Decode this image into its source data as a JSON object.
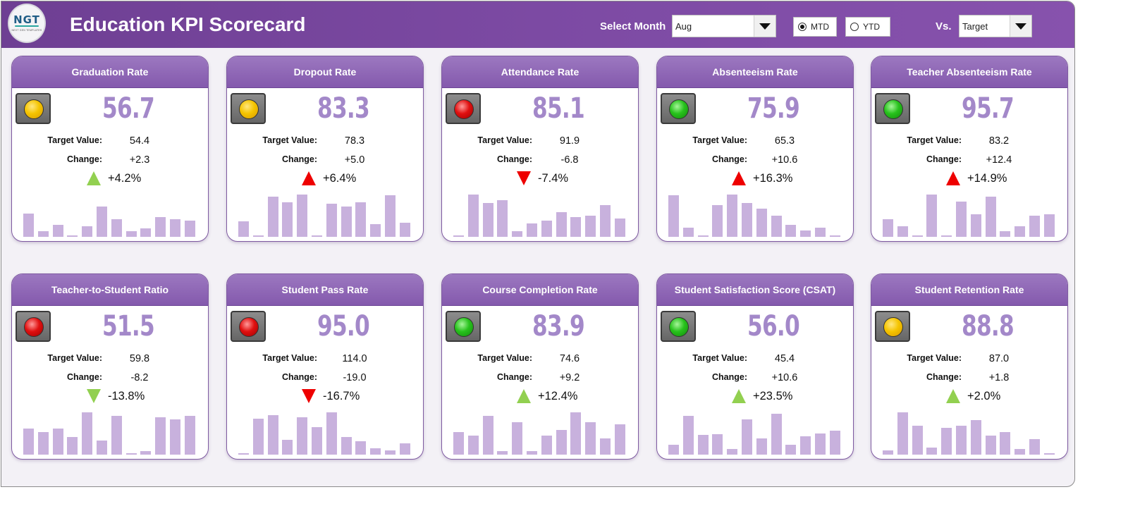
{
  "header": {
    "logo_text": "NGT",
    "logo_subtext": "NEXT GEN TEMPLATES",
    "title": "Education KPI Scorecard",
    "select_month_label": "Select Month",
    "month_value": "Aug",
    "mode_options": [
      {
        "label": "MTD",
        "selected": true
      },
      {
        "label": "YTD",
        "selected": false
      }
    ],
    "vs_label": "Vs.",
    "vs_value": "Target"
  },
  "labels": {
    "target": "Target Value:",
    "change": "Change:"
  },
  "colors": {
    "header": "#7c4aa3",
    "card_header": "#8f69b8",
    "kpi_value": "#a388c9",
    "spark_bar": "#c8b1dd",
    "up_good": "#92d050",
    "bad": "#ee0000"
  },
  "kpis": [
    {
      "title": "Graduation Rate",
      "value": "56.7",
      "target": "54.4",
      "change": "+2.3",
      "pct": "+4.2%",
      "status": "yellow",
      "arrow": "up-green",
      "spark": [
        0.55,
        0.14,
        0.28,
        0.03,
        0.25,
        0.72,
        0.41,
        0.13,
        0.2,
        0.47,
        0.41,
        0.38
      ]
    },
    {
      "title": "Dropout Rate",
      "value": "83.3",
      "target": "78.3",
      "change": "+5.0",
      "pct": "+6.4%",
      "status": "yellow",
      "arrow": "up-red",
      "spark": [
        0.36,
        0.03,
        0.95,
        0.82,
        1.0,
        0.03,
        0.78,
        0.72,
        0.82,
        0.3,
        0.98,
        0.33
      ]
    },
    {
      "title": "Attendance Rate",
      "value": "85.1",
      "target": "91.9",
      "change": "-6.8",
      "pct": "-7.4%",
      "status": "red",
      "arrow": "down-red",
      "spark": [
        0.03,
        1.0,
        0.8,
        0.87,
        0.13,
        0.32,
        0.38,
        0.59,
        0.47,
        0.5,
        0.75,
        0.44
      ]
    },
    {
      "title": "Absenteeism Rate",
      "value": "75.9",
      "target": "65.3",
      "change": "+10.6",
      "pct": "+16.3%",
      "status": "green",
      "arrow": "up-red",
      "spark": [
        0.98,
        0.21,
        0.03,
        0.75,
        1.0,
        0.8,
        0.67,
        0.5,
        0.29,
        0.15,
        0.21,
        0.03
      ]
    },
    {
      "title": "Teacher Absenteeism Rate",
      "value": "95.7",
      "target": "83.2",
      "change": "+12.4",
      "pct": "+14.9%",
      "status": "green",
      "arrow": "up-red",
      "spark": [
        0.41,
        0.25,
        0.03,
        1.0,
        0.03,
        0.84,
        0.53,
        0.95,
        0.13,
        0.25,
        0.5,
        0.53
      ]
    },
    {
      "title": "Teacher-to-Student Ratio",
      "value": "51.5",
      "target": "59.8",
      "change": "-8.2",
      "pct": "-13.8%",
      "status": "red",
      "arrow": "down-green",
      "spark": [
        0.62,
        0.53,
        0.62,
        0.41,
        1.0,
        0.34,
        0.91,
        0.03,
        0.09,
        0.88,
        0.84,
        0.91
      ]
    },
    {
      "title": "Student Pass Rate",
      "value": "95.0",
      "target": "114.0",
      "change": "-19.0",
      "pct": "-16.7%",
      "status": "red",
      "arrow": "down-red",
      "spark": [
        0.03,
        0.85,
        0.94,
        0.35,
        0.88,
        0.65,
        1.0,
        0.42,
        0.31,
        0.15,
        0.1,
        0.27
      ]
    },
    {
      "title": "Course Completion Rate",
      "value": "83.9",
      "target": "74.6",
      "change": "+9.2",
      "pct": "+12.4%",
      "status": "green",
      "arrow": "up-green",
      "spark": [
        0.54,
        0.45,
        0.91,
        0.09,
        0.77,
        0.09,
        0.45,
        0.59,
        1.0,
        0.77,
        0.38,
        0.72
      ]
    },
    {
      "title": "Student Satisfaction Score (CSAT)",
      "value": "56.0",
      "target": "45.4",
      "change": "+10.6",
      "pct": "+23.5%",
      "status": "green",
      "arrow": "up-green",
      "spark": [
        0.24,
        0.91,
        0.47,
        0.49,
        0.14,
        0.84,
        0.38,
        0.96,
        0.24,
        0.43,
        0.5,
        0.56
      ]
    },
    {
      "title": "Student Retention Rate",
      "value": "88.8",
      "target": "87.0",
      "change": "+1.8",
      "pct": "+2.0%",
      "status": "yellow",
      "arrow": "up-green",
      "spark": [
        0.1,
        1.0,
        0.68,
        0.17,
        0.63,
        0.68,
        0.81,
        0.45,
        0.54,
        0.13,
        0.36,
        0.03
      ]
    }
  ]
}
